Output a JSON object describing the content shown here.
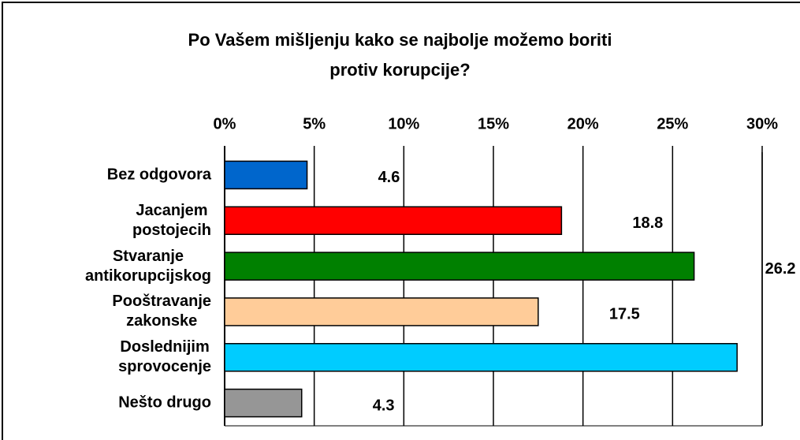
{
  "chart_data": {
    "type": "bar",
    "orientation": "horizontal",
    "title": "Po Vašem mišljenju kako se najbolje možemo boriti\nprotiv korupcije?",
    "categories": [
      "Bez odgovora",
      "Jacanjem\npostojecih",
      "Stvaranje\nantikorupcijskog",
      "Pooštravanje\nzakonske",
      "Doslednijim\nsprovocenje",
      "Nešto drugo"
    ],
    "values": [
      4.6,
      18.8,
      26.2,
      17.5,
      28.6,
      4.3
    ],
    "colors": [
      "#0066cc",
      "#ff0000",
      "#008000",
      "#ffcc99",
      "#00ccff",
      "#969696"
    ],
    "xlim": [
      0,
      30
    ],
    "xticks": [
      {
        "value": 0,
        "label": "0%"
      },
      {
        "value": 5,
        "label": "5%"
      },
      {
        "value": 10,
        "label": "10%"
      },
      {
        "value": 15,
        "label": "15%"
      },
      {
        "value": 20,
        "label": "20%"
      },
      {
        "value": 25,
        "label": "25%"
      },
      {
        "value": 30,
        "label": "30%"
      }
    ],
    "grid": true
  }
}
